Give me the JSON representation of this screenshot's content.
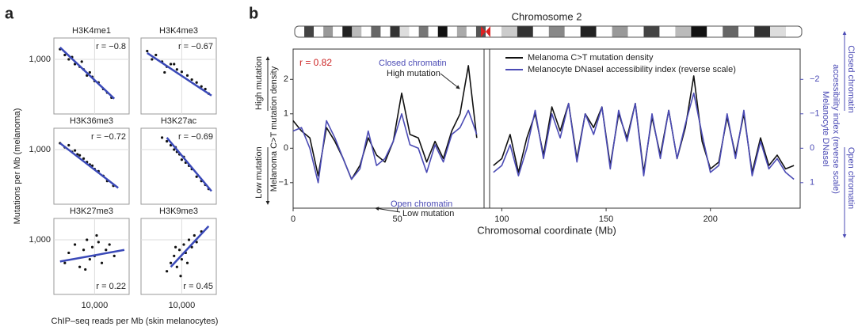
{
  "panel_a": {
    "label": "a",
    "ylabel": "Mutations per  Mb (melanoma)",
    "xlabel": "ChIP–seq reads per Mb (skin melanocytes)"
  },
  "panel_b": {
    "label": "b"
  },
  "chart_data": [
    {
      "type": "scatter",
      "title": "H3K4me1",
      "annotation": "r = −0.8",
      "log_scale": true,
      "grid": true,
      "xlim": [
        1500,
        50000
      ],
      "ylim": [
        300,
        1600
      ],
      "yticks": [
        {
          "value": 1000,
          "label": "1,000"
        }
      ],
      "x": [
        2000,
        2500,
        3000,
        3500,
        4000,
        5000,
        6000,
        7000,
        8000,
        10000,
        12000,
        15000,
        18000,
        22000,
        9000,
        5500
      ],
      "y": [
        1250,
        1100,
        1000,
        1050,
        900,
        850,
        800,
        700,
        750,
        620,
        600,
        520,
        480,
        430,
        680,
        950
      ],
      "fit": {
        "x": [
          2000,
          25000
        ],
        "y": [
          1300,
          420
        ]
      },
      "color": "#111111",
      "fit_color": "#3a49b8"
    },
    {
      "type": "scatter",
      "title": "H3K4me3",
      "annotation": "r = −0.67",
      "log_scale": true,
      "grid": true,
      "xlim": [
        1500,
        50000
      ],
      "ylim": [
        300,
        1600
      ],
      "x": [
        2000,
        2500,
        3000,
        4000,
        5000,
        6000,
        8000,
        10000,
        13000,
        16000,
        20000,
        25000,
        30000,
        35000,
        7000,
        4500
      ],
      "y": [
        1200,
        1000,
        1100,
        950,
        850,
        900,
        800,
        760,
        700,
        640,
        600,
        550,
        520,
        470,
        900,
        750
      ],
      "fit": {
        "x": [
          2000,
          40000
        ],
        "y": [
          1150,
          450
        ]
      },
      "color": "#111111",
      "fit_color": "#3a49b8"
    },
    {
      "type": "scatter",
      "title": "H3K36me3",
      "annotation": "r = −0.72",
      "log_scale": true,
      "grid": true,
      "xlim": [
        1500,
        50000
      ],
      "ylim": [
        300,
        1600
      ],
      "yticks": [
        {
          "value": 1000,
          "label": "1,000"
        }
      ],
      "x": [
        2000,
        2500,
        3000,
        3500,
        4000,
        5000,
        6000,
        7000,
        8000,
        10000,
        12000,
        15000,
        18000,
        24000,
        9000,
        4500
      ],
      "y": [
        1150,
        1050,
        1100,
        950,
        980,
        880,
        820,
        760,
        720,
        650,
        620,
        560,
        500,
        450,
        700,
        900
      ],
      "fit": {
        "x": [
          2000,
          30000
        ],
        "y": [
          1150,
          430
        ]
      },
      "color": "#111111",
      "fit_color": "#3a49b8"
    },
    {
      "type": "scatter",
      "title": "H3K27ac",
      "annotation": "r = −0.69",
      "log_scale": true,
      "grid": true,
      "xlim": [
        1500,
        50000
      ],
      "ylim": [
        300,
        1600
      ],
      "x": [
        4000,
        5000,
        6000,
        7000,
        8000,
        9000,
        10000,
        12000,
        14000,
        16000,
        20000,
        25000,
        30000,
        35000,
        11000,
        7500
      ],
      "y": [
        1300,
        1200,
        1100,
        1000,
        950,
        900,
        800,
        750,
        700,
        650,
        550,
        500,
        460,
        420,
        850,
        1050
      ],
      "fit": {
        "x": [
          5000,
          40000
        ],
        "y": [
          1300,
          400
        ]
      },
      "color": "#111111",
      "fit_color": "#3a49b8"
    },
    {
      "type": "scatter",
      "title": "H3K27me3",
      "annotation": "r = 0.22",
      "log_scale": true,
      "grid": true,
      "xlim": [
        1500,
        50000
      ],
      "ylim": [
        300,
        1600
      ],
      "yticks": [
        {
          "value": 1000,
          "label": "1,000"
        }
      ],
      "xticks": [
        {
          "value": 10000,
          "label": "10,000"
        }
      ],
      "x": [
        2500,
        3000,
        4000,
        5000,
        6000,
        7000,
        8000,
        9000,
        10000,
        12000,
        14000,
        17000,
        20000,
        25000,
        6500,
        11000
      ],
      "y": [
        600,
        750,
        900,
        550,
        800,
        1000,
        650,
        850,
        700,
        950,
        600,
        800,
        900,
        700,
        520,
        1100
      ],
      "fit": {
        "x": [
          2000,
          40000
        ],
        "y": [
          620,
          800
        ]
      },
      "color": "#111111",
      "fit_color": "#3a49b8"
    },
    {
      "type": "scatter",
      "title": "H3K9me3",
      "annotation": "r = 0.45",
      "log_scale": true,
      "grid": true,
      "xlim": [
        1500,
        50000
      ],
      "ylim": [
        300,
        1600
      ],
      "xticks": [
        {
          "value": 10000,
          "label": "10,000"
        }
      ],
      "x": [
        5000,
        6000,
        7000,
        8000,
        9000,
        10000,
        11000,
        12000,
        14000,
        16000,
        18000,
        20000,
        25000,
        9500,
        7500,
        13000
      ],
      "y": [
        500,
        600,
        700,
        550,
        800,
        650,
        900,
        750,
        1000,
        850,
        1100,
        950,
        1200,
        450,
        850,
        600
      ],
      "fit": {
        "x": [
          6000,
          35000
        ],
        "y": [
          550,
          1350
        ]
      },
      "color": "#111111",
      "fit_color": "#3a49b8"
    },
    {
      "type": "line",
      "title": "Chromosome 2",
      "xlabel": "Chromosomal coordinate (Mb)",
      "ylabel": "Melanoma C>T mutation density",
      "y_side_labels": [
        "High mutation",
        "Low mutation"
      ],
      "y2label": [
        "Melanocyte DNaseI",
        "accessibility index (reverse scale)"
      ],
      "y2_side_labels": [
        "Closed chromatin",
        "Open chromatin"
      ],
      "annotations": [
        {
          "text": "r = 0.82",
          "color": "#cc2222"
        },
        {
          "lines": [
            "Closed chromatin",
            "High mutation"
          ]
        },
        {
          "lines": [
            "Open chromatin",
            "Low mutation"
          ]
        }
      ],
      "xlim": [
        0,
        243
      ],
      "xticks": [
        0,
        50,
        100,
        150,
        200
      ],
      "ylim": [
        -1.74,
        2.88
      ],
      "yticks": [
        {
          "value": -1,
          "label": "−1"
        },
        0,
        1,
        2
      ],
      "y2lim": [
        1.74,
        -2.88
      ],
      "y2ticks": [
        {
          "value": -2,
          "label": "−2"
        },
        {
          "value": -1,
          "label": "−1"
        },
        0,
        1
      ],
      "x": [
        0,
        4,
        8,
        12,
        16,
        20,
        24,
        28,
        32,
        36,
        40,
        44,
        48,
        52,
        56,
        60,
        64,
        68,
        72,
        76,
        80,
        84,
        88,
        92,
        96,
        100,
        104,
        108,
        112,
        116,
        120,
        124,
        128,
        132,
        136,
        140,
        144,
        148,
        152,
        156,
        160,
        164,
        168,
        172,
        176,
        180,
        184,
        188,
        192,
        196,
        200,
        204,
        208,
        212,
        216,
        220,
        224,
        228,
        232,
        236,
        240
      ],
      "series": [
        {
          "name": "Melanoma C>T mutation density",
          "color": "#111111",
          "values": [
            0.8,
            0.5,
            0.3,
            -0.8,
            0.6,
            0.2,
            -0.3,
            -0.9,
            -0.5,
            0.3,
            -0.2,
            -0.4,
            0.2,
            1.6,
            0.4,
            0.3,
            -0.4,
            0.2,
            -0.3,
            0.5,
            1.0,
            2.4,
            0.3,
            null,
            -0.5,
            -0.3,
            0.4,
            -0.7,
            0.3,
            1.0,
            -0.2,
            1.2,
            0.5,
            1.3,
            -0.3,
            1.0,
            0.6,
            1.2,
            -0.5,
            1.0,
            0.3,
            1.3,
            -0.7,
            0.9,
            -0.2,
            1.1,
            -0.3,
            0.6,
            2.1,
            0.2,
            -0.6,
            -0.4,
            0.9,
            -0.2,
            1.0,
            -0.7,
            0.3,
            -0.5,
            -0.2,
            -0.6,
            -0.5
          ]
        },
        {
          "name": "Melanocyte DNaseI accessibility index (reverse scale)",
          "color": "#4b4bb5",
          "axis": "y2",
          "values": [
            -0.5,
            -0.6,
            0,
            1.0,
            -0.8,
            -0.3,
            0.3,
            0.9,
            0.6,
            -0.5,
            0.5,
            0.3,
            -0.2,
            -1.0,
            -0.1,
            0,
            0.7,
            -0.1,
            0.4,
            -0.4,
            -0.6,
            -1.1,
            -0.4,
            null,
            0.7,
            0.5,
            -0.1,
            0.8,
            0,
            -1.1,
            0.3,
            -1.0,
            -0.3,
            -1.3,
            0.4,
            -1.0,
            -0.4,
            -1.2,
            0.6,
            -1.1,
            -0.2,
            -1.3,
            0.8,
            -1.0,
            0.3,
            -1.1,
            0.3,
            -0.7,
            -1.6,
            -0.4,
            0.7,
            0.5,
            -1.0,
            0.3,
            -1.1,
            0.8,
            -0.2,
            0.6,
            0.3,
            0.7,
            0.9
          ]
        }
      ]
    }
  ]
}
